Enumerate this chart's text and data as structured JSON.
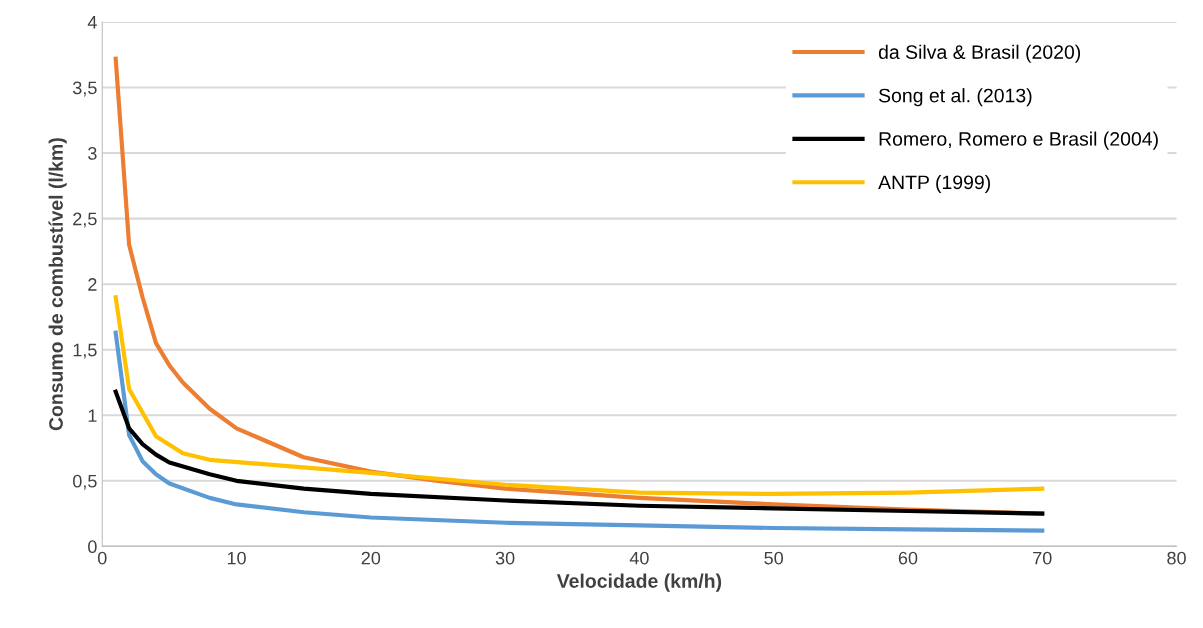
{
  "chart_data": {
    "type": "line",
    "xlabel": "Velocidade (km/h)",
    "ylabel": "Consumo de combustível (l/km)",
    "xlim": [
      0,
      80
    ],
    "xticks": [
      0,
      10,
      20,
      30,
      40,
      50,
      60,
      70,
      80
    ],
    "ylim": [
      0,
      4
    ],
    "yticks": [
      0,
      {
        "value": 0.5,
        "label": "0,5"
      },
      1,
      {
        "value": 1.5,
        "label": "1,5"
      },
      2,
      {
        "value": 2.5,
        "label": "2,5"
      },
      3,
      {
        "value": 3.5,
        "label": "3,5"
      },
      4
    ],
    "grid": "y",
    "legend": "top right",
    "marker": "none",
    "line_style": "solid",
    "series": [
      {
        "name": "da Silva & Brasil (2020)",
        "color": "#ed7d31",
        "x": [
          1,
          2,
          3,
          4,
          5,
          6,
          8,
          10,
          15,
          20,
          25,
          30,
          40,
          50,
          60,
          70
        ],
        "values": [
          3.72,
          2.3,
          1.9,
          1.55,
          1.38,
          1.25,
          1.05,
          0.9,
          0.68,
          0.57,
          0.5,
          0.44,
          0.37,
          0.32,
          0.28,
          0.25
        ]
      },
      {
        "name": "Song et al. (2013)",
        "color": "#5b9bd5",
        "x": [
          1,
          2,
          3,
          4,
          5,
          8,
          10,
          15,
          20,
          30,
          40,
          50,
          60,
          70
        ],
        "values": [
          1.63,
          0.85,
          0.65,
          0.55,
          0.48,
          0.37,
          0.32,
          0.26,
          0.22,
          0.18,
          0.16,
          0.14,
          0.13,
          0.12
        ]
      },
      {
        "name": "Romero, Romero e Brasil (2004)",
        "color": "#000000",
        "x": [
          1,
          2,
          3,
          4,
          5,
          8,
          10,
          15,
          20,
          30,
          40,
          50,
          60,
          70
        ],
        "values": [
          1.18,
          0.9,
          0.78,
          0.7,
          0.64,
          0.55,
          0.5,
          0.44,
          0.4,
          0.35,
          0.31,
          0.29,
          0.27,
          0.25
        ]
      },
      {
        "name": "ANTP (1999)",
        "color": "#ffc000",
        "x": [
          1,
          2,
          4,
          6,
          8,
          20,
          30,
          40,
          50,
          60,
          70
        ],
        "values": [
          1.9,
          1.2,
          0.84,
          0.71,
          0.66,
          0.56,
          0.47,
          0.41,
          0.4,
          0.41,
          0.44
        ]
      }
    ]
  }
}
